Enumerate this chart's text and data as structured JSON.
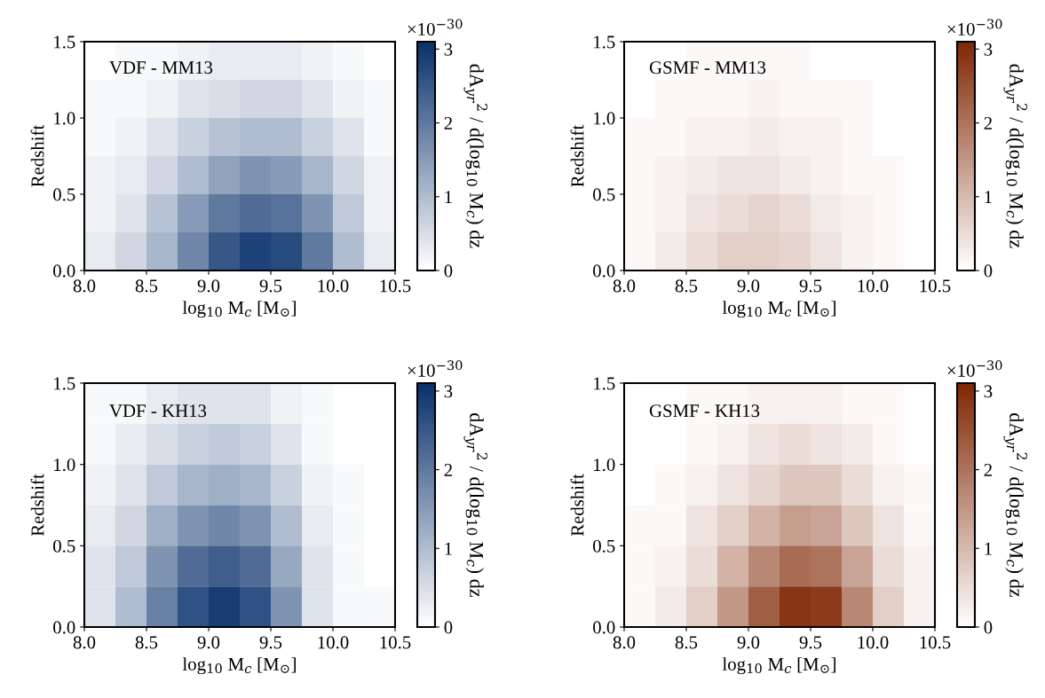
{
  "chart_data": [
    {
      "type": "heatmap",
      "color": "#08306b",
      "xlabel": "log$_{10}$ M$_{c}$ [M$_{⊙}$]",
      "ylabel": "Redshift",
      "clabel": "dA$_{yr}$$^{2}$ / d(log$_{10}$ M$_{c}$) dz",
      "annotations": [
        "VDF - MM13",
        "×10$^{−30}$"
      ],
      "xlim": [
        8.0,
        10.5
      ],
      "ylim": [
        0.0,
        1.5
      ],
      "xticks": [
        {
          "value": 8.0,
          "label": "8.0"
        },
        {
          "value": 8.5,
          "label": "8.5"
        },
        {
          "value": 9.0,
          "label": "9.0"
        },
        {
          "value": 9.5,
          "label": "9.5"
        },
        {
          "value": 10.0,
          "label": "10.0"
        },
        {
          "value": 10.5,
          "label": "10.5"
        }
      ],
      "yticks": [
        {
          "value": 0.0,
          "label": "0.0"
        },
        {
          "value": 0.5,
          "label": "0.5"
        },
        {
          "value": 1.0,
          "label": "1.0"
        },
        {
          "value": 1.5,
          "label": "1.5"
        }
      ],
      "clim": [
        0,
        3.1
      ],
      "cticks": [
        0,
        1,
        2,
        3
      ],
      "cells": [
        [
          0.0,
          0.1,
          0.1,
          0.2,
          0.3,
          0.3,
          0.3,
          0.2,
          0.1,
          0.0
        ],
        [
          0.1,
          0.1,
          0.2,
          0.4,
          0.5,
          0.6,
          0.6,
          0.4,
          0.2,
          0.1
        ],
        [
          0.1,
          0.2,
          0.4,
          0.7,
          0.9,
          1.0,
          1.0,
          0.7,
          0.4,
          0.1
        ],
        [
          0.2,
          0.3,
          0.6,
          1.0,
          1.4,
          1.6,
          1.5,
          1.1,
          0.6,
          0.2
        ],
        [
          0.2,
          0.4,
          0.9,
          1.5,
          2.0,
          2.2,
          2.1,
          1.6,
          0.8,
          0.2
        ],
        [
          0.3,
          0.6,
          1.1,
          1.8,
          2.5,
          2.8,
          2.7,
          2.0,
          1.0,
          0.3
        ]
      ]
    },
    {
      "type": "heatmap",
      "color": "#7f2704",
      "xlabel": "log$_{10}$ M$_{c}$ [M$_{⊙}$]",
      "ylabel": "Redshift",
      "clabel": "dA$_{yr}$$^{2}$ / d(log$_{10}$ M$_{c}$) dz",
      "annotations": [
        "GSMF - MM13",
        "×10$^{−30}$"
      ],
      "xlim": [
        8.0,
        10.5
      ],
      "ylim": [
        0.0,
        1.5
      ],
      "xticks": [
        {
          "value": 8.0,
          "label": "8.0"
        },
        {
          "value": 8.5,
          "label": "8.5"
        },
        {
          "value": 9.0,
          "label": "9.0"
        },
        {
          "value": 9.5,
          "label": "9.5"
        },
        {
          "value": 10.0,
          "label": "10.0"
        },
        {
          "value": 10.5,
          "label": "10.5"
        }
      ],
      "yticks": [
        {
          "value": 0.0,
          "label": "0.0"
        },
        {
          "value": 0.5,
          "label": "0.5"
        },
        {
          "value": 1.0,
          "label": "1.0"
        },
        {
          "value": 1.5,
          "label": "1.5"
        }
      ],
      "clim": [
        0,
        3.1
      ],
      "cticks": [
        0,
        1,
        2,
        3
      ],
      "cells": [
        [
          0.0,
          0.0,
          0.1,
          0.1,
          0.1,
          0.1,
          0.0,
          0.0,
          0.0,
          0.0
        ],
        [
          0.0,
          0.1,
          0.1,
          0.1,
          0.2,
          0.1,
          0.1,
          0.1,
          0.0,
          0.0
        ],
        [
          0.1,
          0.1,
          0.2,
          0.2,
          0.3,
          0.2,
          0.2,
          0.1,
          0.0,
          0.0
        ],
        [
          0.1,
          0.2,
          0.3,
          0.4,
          0.4,
          0.3,
          0.2,
          0.1,
          0.1,
          0.0
        ],
        [
          0.1,
          0.2,
          0.4,
          0.5,
          0.6,
          0.5,
          0.3,
          0.2,
          0.1,
          0.0
        ],
        [
          0.1,
          0.3,
          0.5,
          0.7,
          0.7,
          0.6,
          0.4,
          0.2,
          0.1,
          0.0
        ]
      ]
    },
    {
      "type": "heatmap",
      "color": "#08306b",
      "xlabel": "log$_{10}$ M$_{c}$ [M$_{⊙}$]",
      "ylabel": "Redshift",
      "clabel": "dA$_{yr}$$^{2}$ / d(log$_{10}$ M$_{c}$) dz",
      "annotations": [
        "VDF - KH13",
        "×10$^{−30}$"
      ],
      "xlim": [
        8.0,
        10.5
      ],
      "ylim": [
        0.0,
        1.5
      ],
      "xticks": [
        {
          "value": 8.0,
          "label": "8.0"
        },
        {
          "value": 8.5,
          "label": "8.5"
        },
        {
          "value": 9.0,
          "label": "9.0"
        },
        {
          "value": 9.5,
          "label": "9.5"
        },
        {
          "value": 10.0,
          "label": "10.0"
        },
        {
          "value": 10.5,
          "label": "10.5"
        }
      ],
      "yticks": [
        {
          "value": 0.0,
          "label": "0.0"
        },
        {
          "value": 0.5,
          "label": "0.5"
        },
        {
          "value": 1.0,
          "label": "1.0"
        },
        {
          "value": 1.5,
          "label": "1.5"
        }
      ],
      "clim": [
        0,
        3.1
      ],
      "cticks": [
        0,
        1,
        2,
        3
      ],
      "cells": [
        [
          0.1,
          0.1,
          0.3,
          0.4,
          0.4,
          0.4,
          0.2,
          0.1,
          0.0,
          0.0
        ],
        [
          0.1,
          0.3,
          0.5,
          0.7,
          0.8,
          0.7,
          0.4,
          0.1,
          0.0,
          0.0
        ],
        [
          0.2,
          0.4,
          0.8,
          1.1,
          1.2,
          1.1,
          0.7,
          0.2,
          0.1,
          0.0
        ],
        [
          0.3,
          0.6,
          1.2,
          1.6,
          1.8,
          1.6,
          1.0,
          0.3,
          0.1,
          0.0
        ],
        [
          0.4,
          0.8,
          1.6,
          2.2,
          2.4,
          2.2,
          1.3,
          0.4,
          0.1,
          0.0
        ],
        [
          0.4,
          1.0,
          1.9,
          2.6,
          2.9,
          2.6,
          1.6,
          0.4,
          0.1,
          0.1
        ]
      ]
    },
    {
      "type": "heatmap",
      "color": "#7f2704",
      "xlabel": "log$_{10}$ M$_{c}$ [M$_{⊙}$]",
      "ylabel": "Redshift",
      "clabel": "dA$_{yr}$$^{2}$ / d(log$_{10}$ M$_{c}$) dz",
      "annotations": [
        "GSMF - KH13",
        "×10$^{−30}$"
      ],
      "xlim": [
        8.0,
        10.5
      ],
      "ylim": [
        0.0,
        1.5
      ],
      "xticks": [
        {
          "value": 8.0,
          "label": "8.0"
        },
        {
          "value": 8.5,
          "label": "8.5"
        },
        {
          "value": 9.0,
          "label": "9.0"
        },
        {
          "value": 9.5,
          "label": "9.5"
        },
        {
          "value": 10.0,
          "label": "10.0"
        },
        {
          "value": 10.5,
          "label": "10.5"
        }
      ],
      "yticks": [
        {
          "value": 0.0,
          "label": "0.0"
        },
        {
          "value": 0.5,
          "label": "0.5"
        },
        {
          "value": 1.0,
          "label": "1.0"
        },
        {
          "value": 1.5,
          "label": "1.5"
        }
      ],
      "clim": [
        0,
        3.1
      ],
      "cticks": [
        0,
        1,
        2,
        3
      ],
      "cells": [
        [
          0.0,
          0.0,
          0.1,
          0.1,
          0.2,
          0.2,
          0.2,
          0.1,
          0.1,
          0.0
        ],
        [
          0.0,
          0.0,
          0.1,
          0.2,
          0.4,
          0.5,
          0.4,
          0.3,
          0.1,
          0.0
        ],
        [
          0.0,
          0.1,
          0.2,
          0.4,
          0.6,
          0.8,
          0.8,
          0.5,
          0.2,
          0.1
        ],
        [
          0.1,
          0.1,
          0.4,
          0.7,
          1.1,
          1.4,
          1.3,
          0.8,
          0.4,
          0.1
        ],
        [
          0.1,
          0.2,
          0.5,
          1.1,
          1.7,
          2.1,
          2.0,
          1.3,
          0.5,
          0.2
        ],
        [
          0.1,
          0.3,
          0.7,
          1.5,
          2.3,
          2.9,
          2.8,
          1.7,
          0.7,
          0.2
        ]
      ]
    }
  ]
}
